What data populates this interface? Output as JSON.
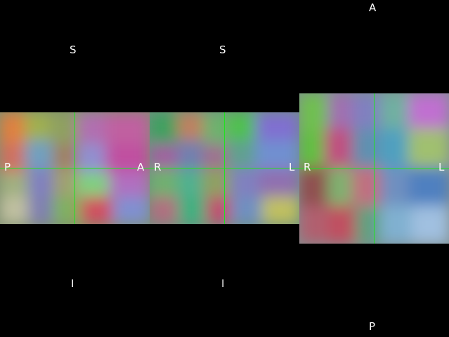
{
  "crosshair_color": "#22e022",
  "background_color": "#000000",
  "views": {
    "sagittal": {
      "top": "S",
      "bottom": "I",
      "left": "P",
      "right": "A"
    },
    "coronal": {
      "top": "S",
      "bottom": "I",
      "left": "R",
      "right": "L"
    },
    "axial": {
      "top": "A",
      "bottom": "P",
      "left": "R",
      "right": "L"
    }
  }
}
